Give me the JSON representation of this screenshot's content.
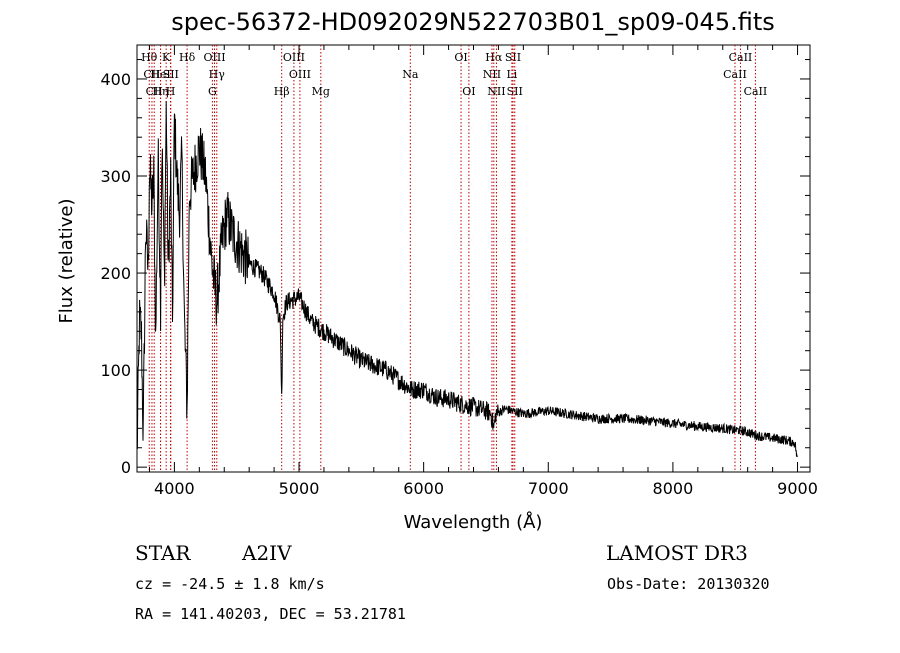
{
  "chart_data": {
    "type": "line",
    "title": "spec-56372-HD092029N522703B01_sp09-045.fits",
    "xlabel": "Wavelength (Å)",
    "ylabel": "Flux (relative)",
    "xlim": [
      3700,
      9100
    ],
    "ylim": [
      -5,
      435
    ],
    "x_ticks": [
      4000,
      5000,
      6000,
      7000,
      8000,
      9000
    ],
    "x_tick_labels": [
      "4000",
      "5000",
      "6000",
      "7000",
      "8000",
      "9000"
    ],
    "y_ticks": [
      0,
      100,
      200,
      300,
      400
    ],
    "y_tick_labels": [
      "0",
      "100",
      "200",
      "300",
      "400"
    ],
    "series": [
      {
        "name": "spectrum",
        "color": "#000000",
        "x": [
          3700,
          3720,
          3735,
          3750,
          3770,
          3790,
          3800,
          3820,
          3835,
          3850,
          3870,
          3889,
          3900,
          3920,
          3935,
          3950,
          3970,
          3985,
          4000,
          4020,
          4040,
          4060,
          4080,
          4102,
          4120,
          4150,
          4200,
          4250,
          4300,
          4340,
          4380,
          4420,
          4470,
          4550,
          4600,
          4700,
          4800,
          4850,
          4861,
          4870,
          4900,
          5000,
          5100,
          5200,
          5300,
          5400,
          5500,
          5600,
          5700,
          5800,
          5900,
          6000,
          6100,
          6200,
          6300,
          6400,
          6500,
          6540,
          6563,
          6580,
          6650,
          6800,
          7000,
          7200,
          7400,
          7600,
          7800,
          8000,
          8200,
          8400,
          8498,
          8542,
          8600,
          8662,
          8700,
          8800,
          8900,
          8980,
          9000
        ],
        "y": [
          10,
          150,
          140,
          30,
          250,
          200,
          310,
          270,
          300,
          130,
          320,
          170,
          340,
          190,
          380,
          200,
          300,
          150,
          360,
          300,
          260,
          320,
          150,
          60,
          280,
          300,
          330,
          300,
          210,
          170,
          230,
          260,
          240,
          220,
          210,
          200,
          180,
          150,
          70,
          155,
          170,
          175,
          150,
          140,
          130,
          120,
          110,
          105,
          100,
          90,
          80,
          80,
          72,
          70,
          65,
          62,
          58,
          55,
          40,
          55,
          60,
          55,
          58,
          54,
          50,
          50,
          48,
          45,
          42,
          40,
          38,
          38,
          36,
          33,
          32,
          30,
          28,
          25,
          5
        ]
      }
    ],
    "line_markers": [
      {
        "label": "Hθ",
        "x": 3798,
        "row": 1
      },
      {
        "label": "CII",
        "x": 3820,
        "row": 2
      },
      {
        "label": "CII",
        "x": 3838,
        "row": 3
      },
      {
        "label": "HeI",
        "x": 3889,
        "row": 2
      },
      {
        "label": "K",
        "x": 3934,
        "row": 1
      },
      {
        "label": "Hη",
        "x": 3889,
        "row": 3
      },
      {
        "label": "SII",
        "x": 3971,
        "row": 2
      },
      {
        "label": "H",
        "x": 3969,
        "row": 3
      },
      {
        "label": "Hδ",
        "x": 4102,
        "row": 1
      },
      {
        "label": "OIII",
        "x": 4322,
        "row": 1
      },
      {
        "label": "Hγ",
        "x": 4340,
        "row": 2
      },
      {
        "label": "G",
        "x": 4305,
        "row": 3
      },
      {
        "label": "OIII",
        "x": 4959,
        "row": 1
      },
      {
        "label": "OIII",
        "x": 5007,
        "row": 2
      },
      {
        "label": "Hβ",
        "x": 4861,
        "row": 3
      },
      {
        "label": "Mg",
        "x": 5175,
        "row": 3
      },
      {
        "label": "Na",
        "x": 5893,
        "row": 2
      },
      {
        "label": "OI",
        "x": 6300,
        "row": 1
      },
      {
        "label": "OI",
        "x": 6363,
        "row": 3
      },
      {
        "label": "Hα",
        "x": 6563,
        "row": 1
      },
      {
        "label": "NII",
        "x": 6548,
        "row": 2
      },
      {
        "label": "NII",
        "x": 6584,
        "row": 3
      },
      {
        "label": "SII",
        "x": 6717,
        "row": 1
      },
      {
        "label": "SII",
        "x": 6731,
        "row": 3
      },
      {
        "label": "Li",
        "x": 6708,
        "row": 2
      },
      {
        "label": "CaII",
        "x": 8542,
        "row": 1
      },
      {
        "label": "CaII",
        "x": 8498,
        "row": 2
      },
      {
        "label": "CaII",
        "x": 8662,
        "row": 3
      }
    ],
    "marker_color": "#c00000"
  },
  "info": {
    "object_type": "STAR",
    "subclass": "A2IV",
    "survey": "LAMOST DR3",
    "cz": "cz = -24.5 ± 1.8 km/s",
    "obs_date": "Obs-Date: 20130320",
    "coords": "RA = 141.40203, DEC =  53.21781"
  }
}
